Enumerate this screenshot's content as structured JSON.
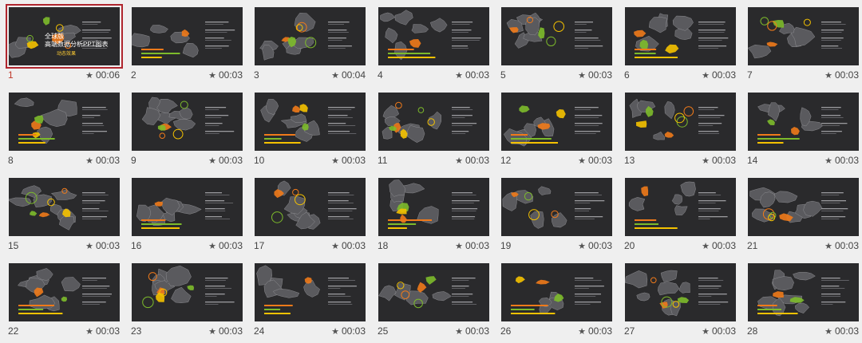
{
  "slides": [
    {
      "num": "1",
      "dur": "00:06",
      "selected": true,
      "title": "全球版\n高端数据分析PPT图表",
      "subtitle": "动态效果"
    },
    {
      "num": "2",
      "dur": "00:03"
    },
    {
      "num": "3",
      "dur": "00:04"
    },
    {
      "num": "4",
      "dur": "00:03"
    },
    {
      "num": "5",
      "dur": "00:03"
    },
    {
      "num": "6",
      "dur": "00:03"
    },
    {
      "num": "7",
      "dur": "00:03"
    },
    {
      "num": "8",
      "dur": "00:03"
    },
    {
      "num": "9",
      "dur": "00:03"
    },
    {
      "num": "10",
      "dur": "00:03"
    },
    {
      "num": "11",
      "dur": "00:03"
    },
    {
      "num": "12",
      "dur": "00:03"
    },
    {
      "num": "13",
      "dur": "00:03"
    },
    {
      "num": "14",
      "dur": "00:03"
    },
    {
      "num": "15",
      "dur": "00:03"
    },
    {
      "num": "16",
      "dur": "00:03"
    },
    {
      "num": "17",
      "dur": "00:03"
    },
    {
      "num": "18",
      "dur": "00:03"
    },
    {
      "num": "19",
      "dur": "00:03"
    },
    {
      "num": "20",
      "dur": "00:03"
    },
    {
      "num": "21",
      "dur": "00:03"
    },
    {
      "num": "22",
      "dur": "00:03"
    },
    {
      "num": "23",
      "dur": "00:03"
    },
    {
      "num": "24",
      "dur": "00:03"
    },
    {
      "num": "25",
      "dur": "00:03"
    },
    {
      "num": "26",
      "dur": "00:03"
    },
    {
      "num": "27",
      "dur": "00:03"
    },
    {
      "num": "28",
      "dur": "00:03"
    }
  ],
  "duration_icon": "star-icon",
  "colors": {
    "slide_bg": "#2a2a2c",
    "accent_orange": "#f07a1a",
    "accent_green": "#7dbb2b",
    "accent_yellow": "#f5c200",
    "selection": "#b0262e"
  }
}
